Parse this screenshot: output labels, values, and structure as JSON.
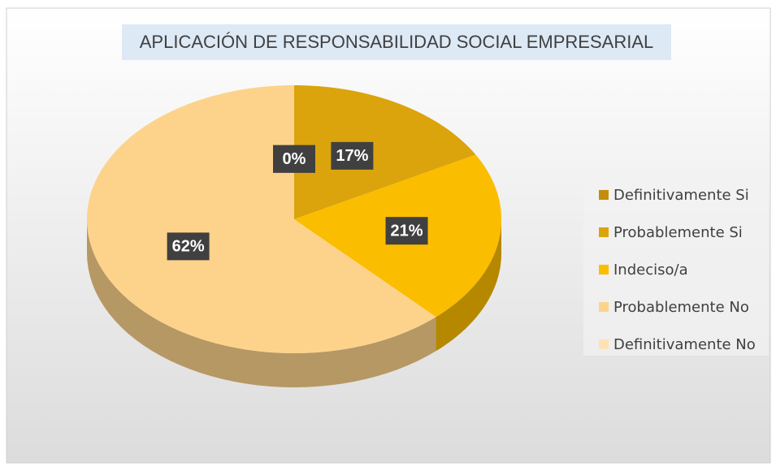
{
  "chart_data": {
    "type": "pie",
    "title": "APLICACIÓN DE RESPONSABILIDAD SOCIAL EMPRESARIAL",
    "categories": [
      "Definitivamente Si",
      "Probablemente Si",
      "Indeciso/a",
      "Probablemente No",
      "Definitivamente No"
    ],
    "values": [
      0,
      17,
      21,
      62,
      0
    ],
    "value_labels": [
      "0%",
      "17%",
      "21%",
      "62%",
      "0%"
    ],
    "colors": [
      "#c38d0b",
      "#dba40c",
      "#fbbd00",
      "#fdd38c",
      "#fee2b3"
    ],
    "legend": "right"
  }
}
